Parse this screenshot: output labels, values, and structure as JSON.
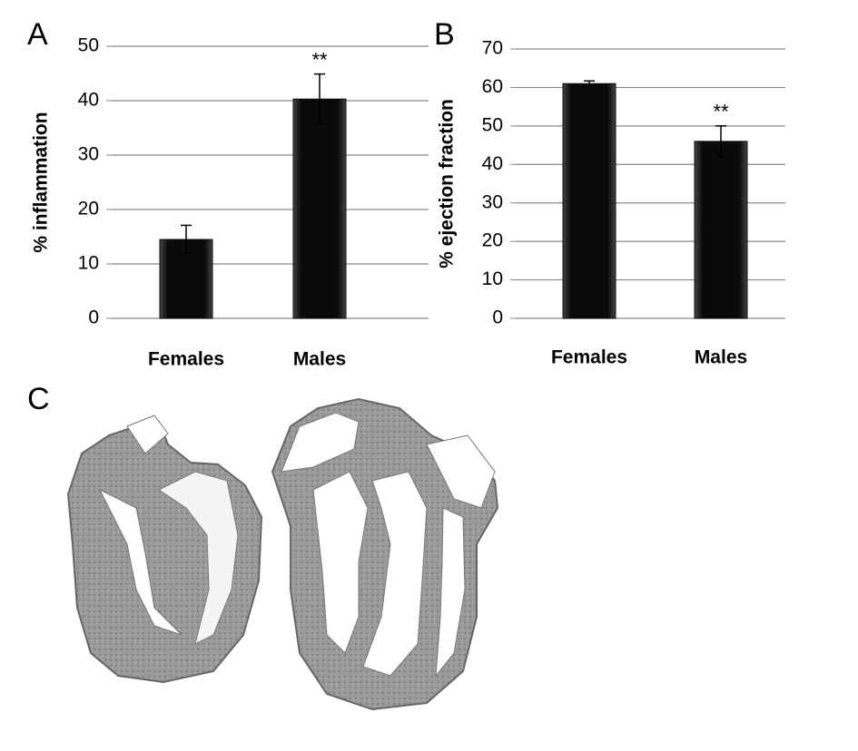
{
  "chart_data": [
    {
      "type": "bar",
      "panel_label": "A",
      "y_label": "% inflammation",
      "categories": [
        "Females",
        "Males"
      ],
      "values": [
        14.5,
        40.3
      ],
      "errors": [
        2.6,
        4.6
      ],
      "value_annotations": [
        null,
        "**"
      ],
      "color": "#111111",
      "ylim": [
        0,
        50
      ],
      "yticks": [
        0,
        10,
        20,
        30,
        40,
        50
      ],
      "grid": true
    },
    {
      "type": "bar",
      "panel_label": "B",
      "y_label": "% ejection fraction",
      "categories": [
        "Females",
        "Males"
      ],
      "values": [
        61,
        46
      ],
      "errors": [
        0.7,
        4
      ],
      "value_annotations": [
        null,
        "**"
      ],
      "color": "#111111",
      "ylim": [
        0,
        70
      ],
      "yticks": [
        0,
        10,
        20,
        30,
        40,
        50,
        60,
        70
      ],
      "grid": true
    }
  ],
  "panel_c": {
    "label": "C"
  }
}
